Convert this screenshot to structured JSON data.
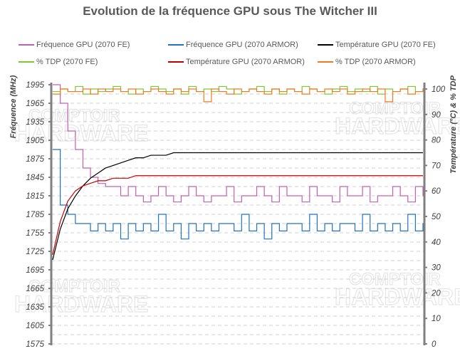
{
  "chart_data": {
    "type": "line",
    "title": "Evolution de la fréquence GPU sous The Witcher III",
    "ylabel": "Fréquence (MHz)",
    "y2label": "Température  (°C) & % TDP",
    "ylim": [
      1575,
      1995
    ],
    "yticks": [
      1575,
      1605,
      1635,
      1665,
      1695,
      1725,
      1755,
      1785,
      1815,
      1845,
      1875,
      1905,
      1935,
      1965,
      1995
    ],
    "y2lim": [
      0,
      100
    ],
    "y2ticks": [
      0,
      10,
      20,
      30,
      40,
      50,
      60,
      70,
      80,
      90,
      100
    ],
    "grid": true,
    "legend_placement": "top",
    "x": [
      0,
      1,
      2,
      3,
      4,
      5,
      6,
      7,
      8,
      9,
      10,
      11,
      12,
      13,
      14,
      15,
      16,
      17,
      18,
      19,
      20,
      21,
      22,
      23,
      24,
      25,
      26,
      27,
      28,
      29,
      30,
      31,
      32,
      33,
      34,
      35,
      36,
      37,
      38,
      39,
      40,
      41,
      42,
      43,
      44,
      45,
      46,
      47,
      48,
      49
    ],
    "series": [
      {
        "name": "Fréquence GPU (2070 FE)",
        "axis": "left",
        "color": "#c060b0",
        "values": [
          1995,
          1965,
          1920,
          1890,
          1860,
          1845,
          1835,
          1830,
          1830,
          1815,
          1830,
          1815,
          1805,
          1815,
          1830,
          1815,
          1805,
          1815,
          1830,
          1815,
          1805,
          1815,
          1815,
          1830,
          1805,
          1815,
          1815,
          1830,
          1815,
          1805,
          1830,
          1815,
          1815,
          1805,
          1830,
          1815,
          1815,
          1805,
          1830,
          1815,
          1815,
          1830,
          1805,
          1815,
          1815,
          1830,
          1815,
          1805,
          1830,
          1815
        ]
      },
      {
        "name": "Fréquence GPU (2070 ARMOR)",
        "axis": "left",
        "color": "#1f73c0",
        "values": [
          1890,
          1800,
          1785,
          1770,
          1770,
          1758,
          1770,
          1758,
          1770,
          1745,
          1770,
          1758,
          1770,
          1758,
          1785,
          1758,
          1770,
          1745,
          1770,
          1758,
          1770,
          1758,
          1770,
          1770,
          1758,
          1785,
          1758,
          1770,
          1745,
          1770,
          1758,
          1770,
          1770,
          1758,
          1785,
          1758,
          1770,
          1758,
          1770,
          1770,
          1758,
          1785,
          1758,
          1770,
          1758,
          1770,
          1758,
          1785,
          1758,
          1770
        ]
      },
      {
        "name": "Température GPU  (2070 FE)",
        "axis": "right",
        "color": "#000000",
        "values": [
          33,
          45,
          53,
          58,
          62,
          65,
          67,
          69,
          70,
          71,
          72,
          73,
          73,
          74,
          74,
          74,
          75,
          75,
          75,
          75,
          75,
          75,
          75,
          75,
          75,
          75,
          75,
          75,
          75,
          75,
          75,
          75,
          75,
          75,
          75,
          75,
          75,
          75,
          75,
          75,
          75,
          75,
          75,
          75,
          75,
          75,
          75,
          75,
          75,
          75
        ]
      },
      {
        "name": "% TDP (2070 FE)",
        "axis": "right",
        "color": "#80c830",
        "values": [
          99,
          100,
          99,
          101,
          98,
          100,
          99,
          100,
          101,
          99,
          98,
          100,
          99,
          101,
          100,
          99,
          100,
          98,
          101,
          99,
          100,
          99,
          101,
          100,
          98,
          99,
          100,
          101,
          99,
          100,
          98,
          100,
          99,
          101,
          100,
          99,
          98,
          100,
          101,
          99,
          100,
          99,
          101,
          98,
          100,
          99,
          100,
          101,
          99,
          100
        ]
      },
      {
        "name": "Température GPU  (2070 ARMOR)",
        "axis": "right",
        "color": "#c00000",
        "values": [
          35,
          48,
          56,
          60,
          62,
          63,
          64,
          64,
          65,
          65,
          65,
          66,
          66,
          66,
          66,
          66,
          66,
          66,
          66,
          66,
          66,
          66,
          66,
          66,
          66,
          66,
          66,
          66,
          66,
          66,
          66,
          66,
          66,
          66,
          66,
          66,
          66,
          66,
          66,
          66,
          66,
          66,
          66,
          66,
          66,
          66,
          66,
          66,
          66,
          66
        ]
      },
      {
        "name": "% TDP (2070 ARMOR)",
        "axis": "right",
        "color": "#f07a20",
        "values": [
          98,
          100,
          99,
          99,
          100,
          98,
          100,
          99,
          100,
          99,
          100,
          98,
          99,
          100,
          99,
          98,
          100,
          99,
          100,
          99,
          95,
          100,
          99,
          98,
          100,
          99,
          100,
          99,
          98,
          100,
          99,
          100,
          99,
          98,
          100,
          99,
          100,
          99,
          100,
          98,
          99,
          100,
          99,
          100,
          95,
          99,
          100,
          98,
          99,
          100
        ]
      }
    ]
  },
  "watermark": "le COMPTOIR du HARDWARE"
}
